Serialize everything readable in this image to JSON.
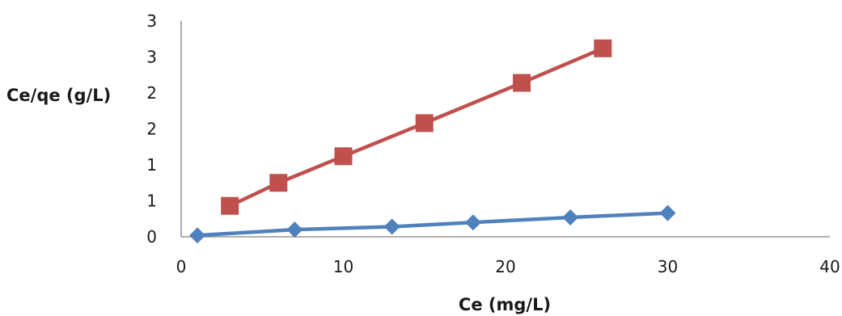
{
  "chart_data": {
    "type": "scatter",
    "title": "",
    "xlabel": "Ce (mg/L)",
    "ylabel": "Ce/qe (g/L)",
    "xlim": [
      0,
      40
    ],
    "ylim": [
      0,
      3
    ],
    "xticks": [
      0,
      10,
      20,
      30,
      40
    ],
    "yticks": [
      0,
      0.5,
      1,
      1.5,
      2,
      2.5,
      3
    ],
    "ytick_labels": [
      "0",
      "1",
      "1",
      "2",
      "2",
      "3",
      "3"
    ],
    "grid": false,
    "legend": "none",
    "series": [
      {
        "color": "#c0504d",
        "marker": "square",
        "x": [
          3,
          6,
          10,
          15,
          21,
          26
        ],
        "y": [
          0.43,
          0.75,
          1.12,
          1.58,
          2.14,
          2.62
        ]
      },
      {
        "color": "#4f81bd",
        "marker": "diamond",
        "x": [
          1,
          7,
          13,
          18,
          24,
          30
        ],
        "y": [
          0.02,
          0.1,
          0.14,
          0.2,
          0.27,
          0.33
        ]
      }
    ]
  }
}
